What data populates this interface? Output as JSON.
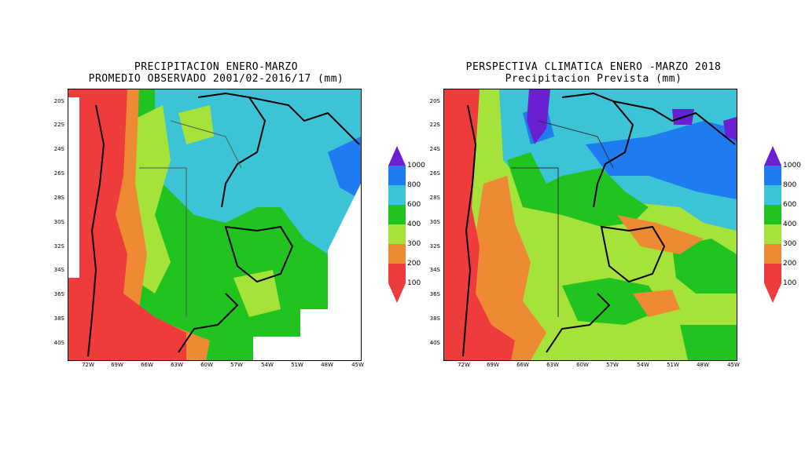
{
  "maps": [
    {
      "title_line1": "PRECIPITACION ENERO-MARZO",
      "title_line2": "PROMEDIO OBSERVADO 2001/02-2016/17 (mm)"
    },
    {
      "title_line1": "PERSPECTIVA CLIMATICA ENERO -MARZO 2018",
      "title_line2": "Precipitacion Prevista (mm)"
    }
  ],
  "lat_labels": [
    "20S",
    "22S",
    "24S",
    "26S",
    "28S",
    "30S",
    "32S",
    "34S",
    "36S",
    "38S",
    "40S"
  ],
  "lon_labels": [
    "72W",
    "69W",
    "66W",
    "63W",
    "60W",
    "57W",
    "54W",
    "51W",
    "48W",
    "45W"
  ],
  "legend": {
    "labels": [
      "1000",
      "800",
      "600",
      "400",
      "300",
      "200",
      "100"
    ],
    "colors": {
      "c100": "#ee3b3b",
      "c200": "#ee8a33",
      "c300": "#a6e33a",
      "c400": "#20c320",
      "c600": "#3cc3d5",
      "c800": "#1e7cf0",
      "c1000": "#6a1fd0"
    }
  }
}
